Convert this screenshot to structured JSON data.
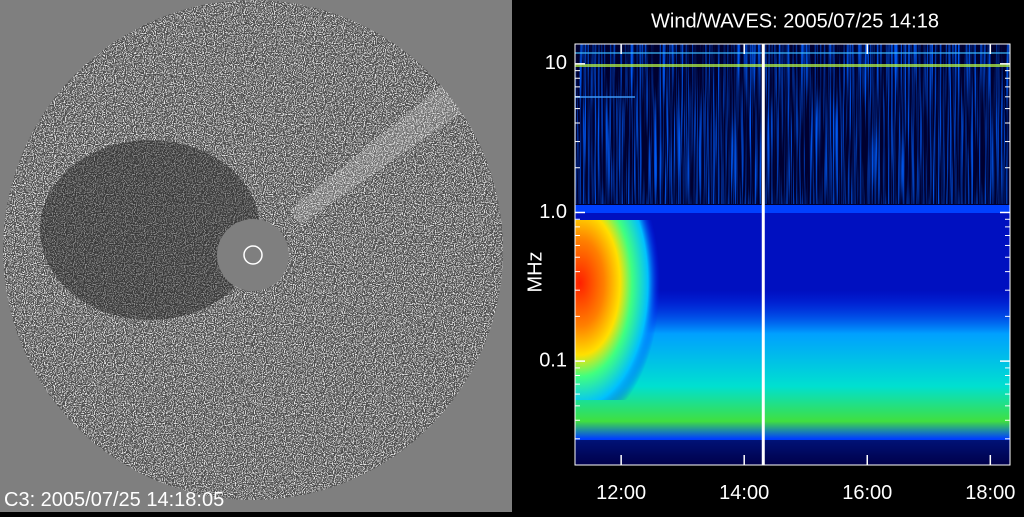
{
  "left_panel": {
    "caption": "C3: 2005/07/25 14:18:05"
  },
  "chart_data": {
    "type": "spectrogram",
    "title": "Wind/WAVES: 2005/07/25 14:18",
    "y_label": "MHz",
    "y_scale": "log",
    "ylim": [
      0.02,
      13.6
    ],
    "yticks": [
      0.1,
      {
        "value": 1,
        "label": "1.0"
      },
      10
    ],
    "xlim": [
      11.25,
      18.32
    ],
    "xticks": [
      {
        "value": 12,
        "label": "12:00"
      },
      {
        "value": 14,
        "label": "14:00"
      },
      {
        "value": 16,
        "label": "16:00"
      },
      {
        "value": 18,
        "label": "18:00"
      }
    ],
    "marker_x": 14.31,
    "marker_color": "#ffffff"
  }
}
